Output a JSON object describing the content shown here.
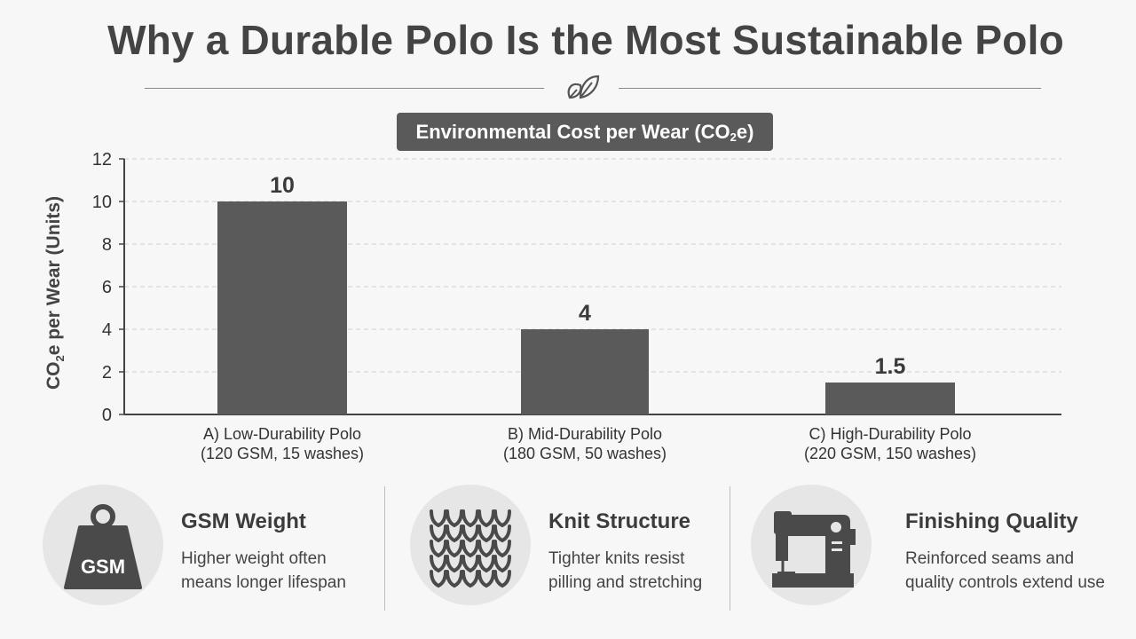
{
  "header": {
    "title": "Why a Durable Polo Is the Most Sustainable Polo",
    "divider_icon": "leaf-icon"
  },
  "chart_data": {
    "type": "bar",
    "title": "Environmental Cost per Wear (CO₂e)",
    "ylabel": "CO₂e per Wear (Units)",
    "xlabel": "",
    "ylim": [
      0,
      12
    ],
    "yticks": [
      0,
      2,
      4,
      6,
      8,
      10,
      12
    ],
    "grid": true,
    "categories": [
      [
        "A) Low-Durability Polo",
        "(120 GSM, 15 washes)"
      ],
      [
        "B) Mid-Durability Polo",
        "(180 GSM, 50 washes)"
      ],
      [
        "C) High-Durability Polo",
        "(220 GSM, 150 washes)"
      ]
    ],
    "values": [
      10,
      4,
      1.5
    ],
    "value_labels": [
      "10",
      "4",
      "1.5"
    ],
    "bar_color": "#5a5a5a"
  },
  "features": [
    {
      "icon": "weight-icon",
      "icon_text": "GSM",
      "title": "GSM Weight",
      "desc": [
        "Higher weight often",
        "means longer lifespan"
      ]
    },
    {
      "icon": "knit-icon",
      "title": "Knit Structure",
      "desc": [
        "Tighter knits resist",
        "pilling and stretching"
      ]
    },
    {
      "icon": "sewing-machine-icon",
      "title": "Finishing Quality",
      "desc": [
        "Reinforced seams and",
        "quality controls extend use"
      ]
    }
  ]
}
